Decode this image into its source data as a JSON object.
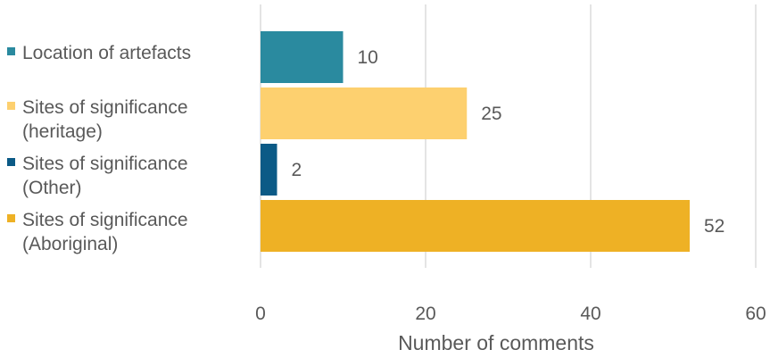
{
  "chart_data": {
    "type": "bar",
    "orientation": "horizontal",
    "categories": [
      [
        "Location of artefacts"
      ],
      [
        "Sites of significance",
        "(heritage)"
      ],
      [
        "Sites of significance",
        "(Other)"
      ],
      [
        "Sites of significance",
        "(Aboriginal)"
      ]
    ],
    "values": [
      10,
      25,
      2,
      52
    ],
    "colors": [
      "#2a8a9f",
      "#fdd06f",
      "#0b5a86",
      "#eeb125"
    ],
    "xlabel": "Number of comments",
    "xlim": [
      0,
      60
    ],
    "xticks": [
      0,
      20,
      40,
      60
    ],
    "grid": "vertical",
    "legend": "none",
    "data_labels": true
  }
}
